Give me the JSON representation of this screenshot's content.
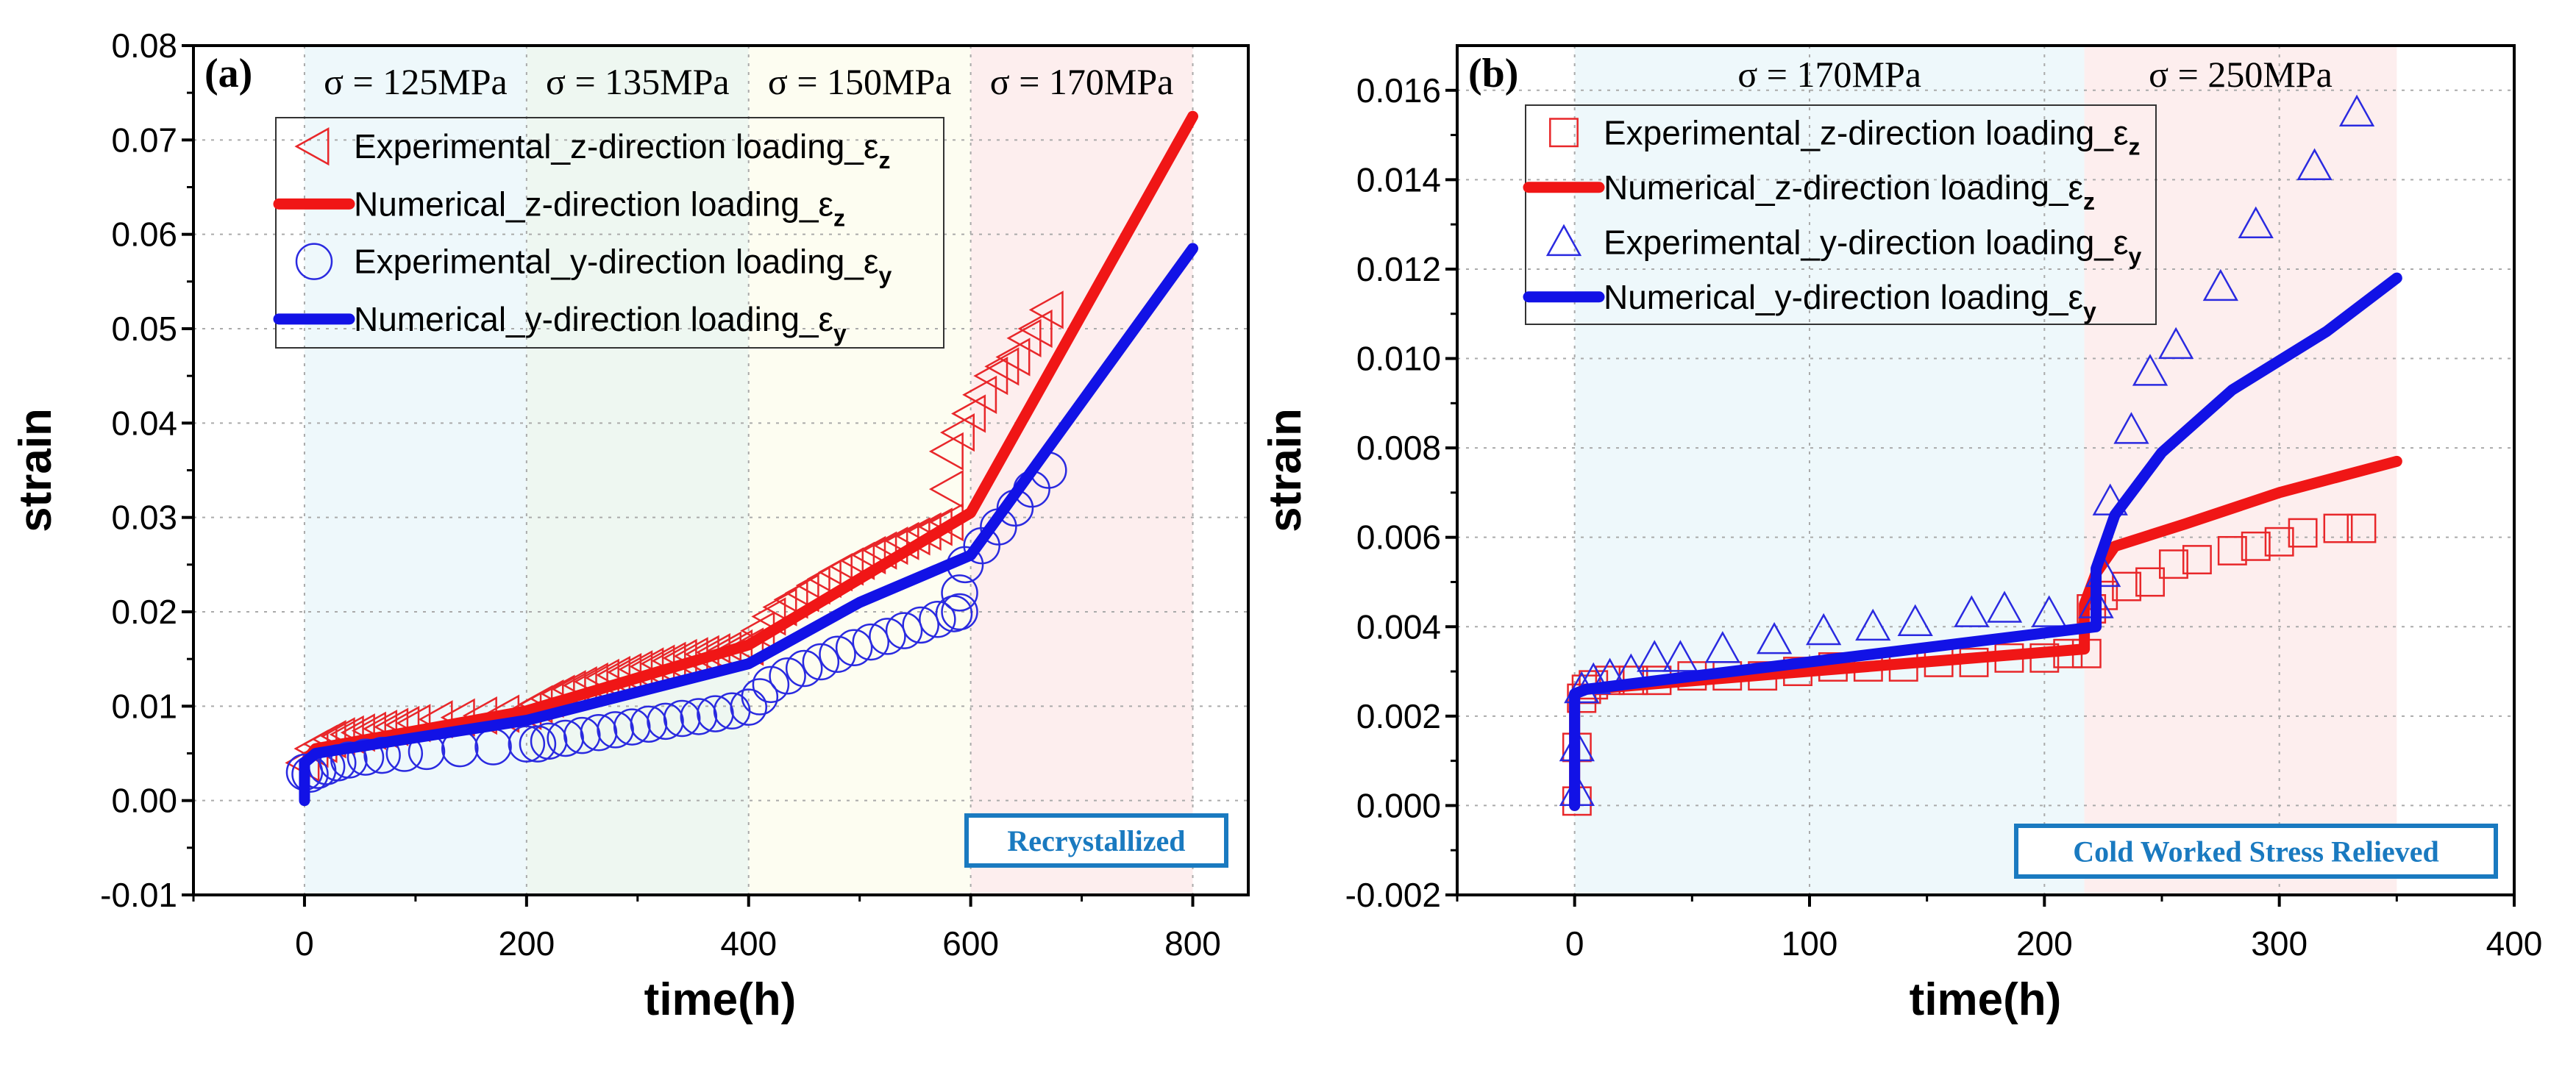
{
  "chart_data": [
    {
      "type": "scatter",
      "panel_label": "(a)",
      "xlabel": "time(h)",
      "ylabel": "strain",
      "xlim": [
        -100,
        850
      ],
      "ylim": [
        -0.01,
        0.08
      ],
      "xticks": [
        0,
        200,
        400,
        600,
        800
      ],
      "xtick_labels": [
        "0",
        "200",
        "400",
        "600",
        "800"
      ],
      "yticks": [
        -0.01,
        0,
        0.01,
        0.02,
        0.03,
        0.04,
        0.05,
        0.06,
        0.07,
        0.08
      ],
      "ytick_labels": [
        "-0.01",
        "0.00",
        "0.01",
        "0.02",
        "0.03",
        "0.04",
        "0.05",
        "0.06",
        "0.07",
        "0.08"
      ],
      "grid": true,
      "legend_position": "top-left",
      "badge": "Recrystallized",
      "stress_regions": [
        {
          "label": "σ = 125MPa",
          "from": 0,
          "to": 200,
          "color": "#eef8fb"
        },
        {
          "label": "σ = 135MPa",
          "from": 200,
          "to": 400,
          "color": "#eef7f1"
        },
        {
          "label": "σ = 150MPa",
          "from": 400,
          "to": 600,
          "color": "#fdfdf1"
        },
        {
          "label": "σ = 170MPa",
          "from": 600,
          "to": 800,
          "color": "#fdeeee"
        }
      ],
      "series": [
        {
          "name": "Experimental_z-direction loading_ε",
          "sub": "z",
          "kind": "marker",
          "marker": "triangle-left",
          "color": "#e8272a",
          "x": [
            0,
            8,
            16,
            24,
            32,
            40,
            50,
            60,
            70,
            80,
            90,
            100,
            120,
            140,
            160,
            180,
            200,
            210,
            220,
            230,
            240,
            250,
            260,
            270,
            280,
            290,
            300,
            310,
            320,
            330,
            340,
            350,
            360,
            370,
            380,
            390,
            400,
            410,
            420,
            430,
            440,
            450,
            460,
            470,
            480,
            490,
            500,
            510,
            520,
            530,
            540,
            550,
            560,
            570,
            580,
            580,
            580,
            590,
            600,
            610,
            620,
            630,
            640,
            650,
            660,
            670
          ],
          "y": [
            0.004,
            0.0055,
            0.006,
            0.0065,
            0.0068,
            0.007,
            0.0072,
            0.0074,
            0.0076,
            0.0078,
            0.008,
            0.0082,
            0.0086,
            0.0088,
            0.009,
            0.0092,
            0.0095,
            0.0102,
            0.0108,
            0.0113,
            0.0118,
            0.0122,
            0.0126,
            0.013,
            0.0133,
            0.0136,
            0.0139,
            0.0142,
            0.0145,
            0.0148,
            0.0151,
            0.0153,
            0.0155,
            0.0157,
            0.0159,
            0.0161,
            0.0163,
            0.018,
            0.0195,
            0.0205,
            0.0213,
            0.022,
            0.0228,
            0.0235,
            0.0242,
            0.0248,
            0.0254,
            0.026,
            0.0265,
            0.027,
            0.0275,
            0.028,
            0.0285,
            0.029,
            0.0295,
            0.033,
            0.037,
            0.039,
            0.041,
            0.043,
            0.045,
            0.046,
            0.047,
            0.049,
            0.05,
            0.052
          ]
        },
        {
          "name": "Numerical_z-direction loading_ε",
          "sub": "z",
          "kind": "line",
          "color": "#f01616",
          "x": [
            0,
            10,
            200,
            400,
            600,
            800
          ],
          "y": [
            0.004,
            0.0055,
            0.0095,
            0.0165,
            0.0305,
            0.0725
          ]
        },
        {
          "name": "Experimental_y-direction loading_ε",
          "sub": "y",
          "kind": "marker",
          "marker": "circle",
          "color": "#2a2ae0",
          "x": [
            0,
            5,
            12,
            20,
            30,
            40,
            55,
            70,
            90,
            110,
            140,
            170,
            200,
            210,
            220,
            235,
            250,
            265,
            280,
            295,
            310,
            325,
            340,
            355,
            370,
            385,
            400,
            410,
            420,
            435,
            450,
            465,
            480,
            495,
            510,
            525,
            540,
            555,
            570,
            585,
            590,
            590,
            595,
            610,
            625,
            640,
            655,
            670
          ],
          "y": [
            0.003,
            0.0028,
            0.0032,
            0.0036,
            0.004,
            0.0043,
            0.0046,
            0.0048,
            0.005,
            0.0052,
            0.0055,
            0.0057,
            0.006,
            0.006,
            0.0063,
            0.0066,
            0.0069,
            0.0072,
            0.0075,
            0.0078,
            0.0081,
            0.0084,
            0.0087,
            0.0089,
            0.0092,
            0.0095,
            0.0099,
            0.011,
            0.0123,
            0.0132,
            0.014,
            0.0147,
            0.0155,
            0.0162,
            0.0168,
            0.0174,
            0.018,
            0.0186,
            0.0192,
            0.0198,
            0.02,
            0.022,
            0.025,
            0.027,
            0.029,
            0.031,
            0.033,
            0.035
          ]
        },
        {
          "name": "Numerical_y-direction loading_ε",
          "sub": "y",
          "kind": "line",
          "color": "#1212e6",
          "x": [
            0,
            0,
            10,
            200,
            400,
            500,
            600,
            800
          ],
          "y": [
            0,
            0.004,
            0.005,
            0.0085,
            0.0145,
            0.021,
            0.026,
            0.0585
          ]
        }
      ]
    },
    {
      "type": "scatter",
      "panel_label": "(b)",
      "xlabel": "time(h)",
      "ylabel": "strain",
      "xlim": [
        -50,
        400
      ],
      "ylim": [
        -0.002,
        0.017
      ],
      "xticks": [
        0,
        100,
        200,
        300,
        400
      ],
      "xtick_labels": [
        "0",
        "100",
        "200",
        "300",
        "400"
      ],
      "yticks": [
        -0.002,
        0,
        0.002,
        0.004,
        0.006,
        0.008,
        0.01,
        0.012,
        0.014,
        0.016
      ],
      "ytick_labels": [
        "-0.002",
        "0.000",
        "0.002",
        "0.004",
        "0.006",
        "0.008",
        "0.010",
        "0.012",
        "0.014",
        "0.016"
      ],
      "grid": true,
      "legend_position": "top-left",
      "badge": "Cold Worked Stress Relieved",
      "stress_regions": [
        {
          "label": "σ = 170MPa",
          "from": 0,
          "to": 217,
          "color": "#eef8fb"
        },
        {
          "label": "σ = 250MPa",
          "from": 217,
          "to": 350,
          "color": "#fdeeee"
        }
      ],
      "series": [
        {
          "name": "Experimental_z-direction loading_ε",
          "sub": "z",
          "kind": "marker",
          "marker": "square",
          "color": "#e8272a",
          "x": [
            1,
            1,
            3,
            5,
            8,
            15,
            25,
            35,
            50,
            65,
            80,
            95,
            110,
            125,
            140,
            155,
            170,
            185,
            200,
            210,
            218,
            220,
            225,
            235,
            245,
            255,
            265,
            280,
            290,
            300,
            310,
            325,
            335
          ],
          "y": [
            0.0001,
            0.0013,
            0.0024,
            0.0026,
            0.0027,
            0.0028,
            0.0028,
            0.0028,
            0.0029,
            0.0029,
            0.0029,
            0.003,
            0.0031,
            0.0031,
            0.0031,
            0.0032,
            0.0032,
            0.0033,
            0.0033,
            0.0034,
            0.0034,
            0.0044,
            0.0047,
            0.0049,
            0.005,
            0.0054,
            0.0055,
            0.0057,
            0.0058,
            0.0059,
            0.0061,
            0.0062,
            0.0062
          ]
        },
        {
          "name": "Numerical_z-direction loading_ε",
          "sub": "z",
          "kind": "line",
          "color": "#f01616",
          "x": [
            0,
            0,
            5,
            217,
            217,
            222,
            230,
            260,
            300,
            350
          ],
          "y": [
            0,
            0.0025,
            0.0026,
            0.0035,
            0.0045,
            0.0052,
            0.0058,
            0.0063,
            0.007,
            0.0077
          ]
        },
        {
          "name": "Experimental_y-direction loading_ε",
          "sub": "y",
          "kind": "marker",
          "marker": "triangle-up",
          "color": "#2a2ae0",
          "x": [
            1,
            1,
            3,
            8,
            15,
            24,
            34,
            45,
            63,
            85,
            106,
            127,
            145,
            169,
            183,
            202,
            222,
            225,
            228,
            237,
            245,
            256,
            275,
            290,
            315,
            333
          ],
          "y": [
            0.0003,
            0.0013,
            0.0026,
            0.0028,
            0.0029,
            0.003,
            0.0033,
            0.0033,
            0.0035,
            0.0037,
            0.0039,
            0.004,
            0.0041,
            0.0043,
            0.0044,
            0.0043,
            0.0045,
            0.0052,
            0.0068,
            0.0084,
            0.0097,
            0.0103,
            0.0116,
            0.013,
            0.0143,
            0.0155
          ]
        },
        {
          "name": "Numerical_y-direction loading_ε",
          "sub": "y",
          "kind": "line",
          "color": "#1212e6",
          "x": [
            0,
            0,
            5,
            222,
            222,
            230,
            250,
            280,
            320,
            350
          ],
          "y": [
            0,
            0.0025,
            0.0026,
            0.004,
            0.0053,
            0.0065,
            0.0079,
            0.0093,
            0.0106,
            0.0118
          ]
        }
      ]
    }
  ]
}
